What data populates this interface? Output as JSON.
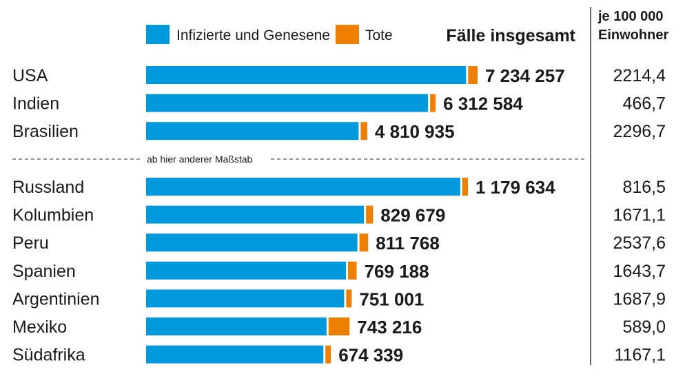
{
  "chart_data": {
    "type": "bar",
    "orientation": "horizontal",
    "stacked": true,
    "legend": {
      "placement": "top",
      "items": [
        {
          "name": "Infizierte und Genesene",
          "color": "#0099dd"
        },
        {
          "name": "Tote",
          "color": "#ee7f00"
        }
      ]
    },
    "header_total": "Fälle insgesamt",
    "header_per_line1": "je 100 000",
    "header_per_line2": "Einwohner",
    "scale_note": "ab hier anderer Maßstab",
    "groups": [
      {
        "rows": [
          {
            "country": "USA",
            "total_label": "7 234 257",
            "total": 7234257,
            "deaths": 207000,
            "per100k": "2214,4"
          },
          {
            "country": "Indien",
            "total_label": "6 312 584",
            "total": 6312584,
            "deaths": 98700,
            "per100k": "466,7"
          },
          {
            "country": "Brasilien",
            "total_label": "4 810 935",
            "total": 4810935,
            "deaths": 143952,
            "per100k": "2296,7"
          }
        ]
      },
      {
        "rows": [
          {
            "country": "Russland",
            "total_label": "1 179 634",
            "total": 1179634,
            "deaths": 20722,
            "per100k": "816,5"
          },
          {
            "country": "Kolumbien",
            "total_label": "829 679",
            "total": 829679,
            "deaths": 25998,
            "per100k": "1671,1"
          },
          {
            "country": "Peru",
            "total_label": "811 768",
            "total": 811768,
            "deaths": 32324,
            "per100k": "2537,6"
          },
          {
            "country": "Spanien",
            "total_label": "769 188",
            "total": 769188,
            "deaths": 31791,
            "per100k": "1643,7"
          },
          {
            "country": "Argentinien",
            "total_label": "751 001",
            "total": 751001,
            "deaths": 16937,
            "per100k": "1687,9"
          },
          {
            "country": "Mexiko",
            "total_label": "743 216",
            "total": 743216,
            "deaths": 77646,
            "per100k": "589,0"
          },
          {
            "country": "Südafrika",
            "total_label": "674 339",
            "total": 674339,
            "deaths": 16734,
            "per100k": "1167,1"
          }
        ]
      }
    ]
  }
}
